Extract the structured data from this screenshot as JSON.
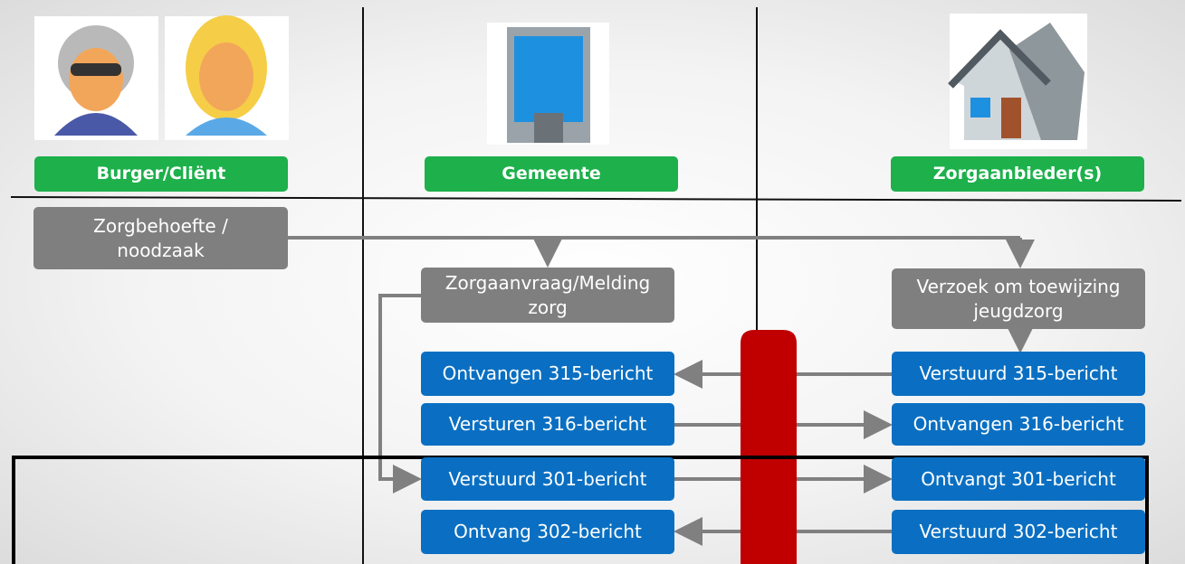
{
  "columns": [
    {
      "label": "Burger/Cliënt"
    },
    {
      "label": "Gemeente"
    },
    {
      "label": "Zorgaanbieder(s)"
    }
  ],
  "requests": [
    {
      "lines": [
        "Zorgbehoefte /",
        "noodzaak"
      ]
    },
    {
      "lines": [
        "Zorgaanvraag/Melding",
        "zorg"
      ]
    },
    {
      "lines": [
        "Verzoek om toewijzing",
        "jeugdzorg"
      ]
    }
  ],
  "messages": {
    "gemeente": [
      "Ontvangen 315-bericht",
      "Versturen 316-bericht",
      "Verstuurd 301-bericht",
      "Ontvang 302-bericht"
    ],
    "zorgaanbieder": [
      "Verstuurd 315-bericht",
      "Ontvangen 316-bericht",
      "Ontvangt 301-bericht",
      "Verstuurd 302-bericht"
    ]
  }
}
